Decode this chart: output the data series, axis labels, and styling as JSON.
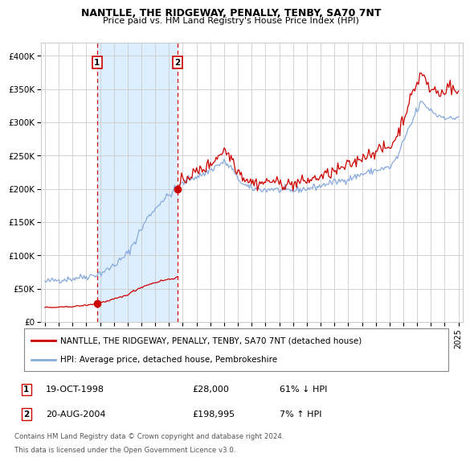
{
  "title": "NANTLLE, THE RIDGEWAY, PENALLY, TENBY, SA70 7NT",
  "subtitle": "Price paid vs. HM Land Registry's House Price Index (HPI)",
  "hpi_color": "#88aadd",
  "price_color": "#cc0000",
  "dot_color": "#cc0000",
  "shaded_region_color": "#ddeeff",
  "vline_color": "#cc0000",
  "background_color": "#ffffff",
  "grid_color": "#cccccc",
  "ylim": [
    0,
    420000
  ],
  "yticks": [
    0,
    50000,
    100000,
    150000,
    200000,
    250000,
    300000,
    350000,
    400000
  ],
  "ytick_labels": [
    "£0",
    "£50K",
    "£100K",
    "£150K",
    "£200K",
    "£250K",
    "£300K",
    "£350K",
    "£400K"
  ],
  "sale1_x": 1998.79,
  "sale1_price": 28000,
  "sale2_x": 2004.63,
  "sale2_price": 198995,
  "legend_line1": "NANTLLE, THE RIDGEWAY, PENALLY, TENBY, SA70 7NT (detached house)",
  "legend_line2": "HPI: Average price, detached house, Pembrokeshire",
  "table_row1": [
    "1",
    "19-OCT-1998",
    "£28,000",
    "61% ↓ HPI"
  ],
  "table_row2": [
    "2",
    "20-AUG-2004",
    "£198,995",
    "7% ↑ HPI"
  ],
  "footnote1": "Contains HM Land Registry data © Crown copyright and database right 2024.",
  "footnote2": "This data is licensed under the Open Government Licence v3.0."
}
